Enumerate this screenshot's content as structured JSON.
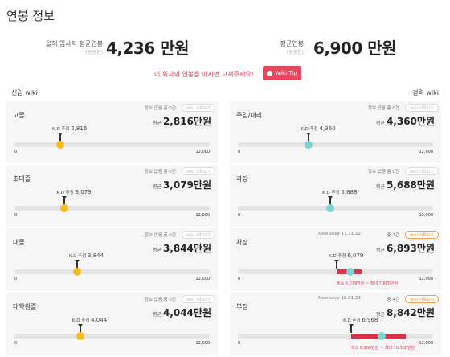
{
  "page_title": "연봉 정보",
  "summary": {
    "left_label": "올해 입사자 평균연봉",
    "left_sub": "(공공현)",
    "left_value": "4,236 만원",
    "right_label": "평균연봉",
    "right_sub": "(공공현)",
    "right_value": "6,900 만원"
  },
  "notice": "이 회사의 연봉을 아시면 고쳐주세요!",
  "wiki_tip_label": "Wiki Tip",
  "columns": {
    "left": "신입 wiki",
    "right": "경력 wiki"
  },
  "colors": {
    "yellow": "#f5bd1f",
    "teal": "#7dd3cf",
    "red": "#d6334a"
  },
  "cards": [
    {
      "category": "고졸",
      "info": "정보 없음",
      "count": "총 0건",
      "wiki_btn": "wiki 기록보기",
      "avg_prefix": "평균",
      "avg": "2,816만원",
      "kd_label": "K.D 추정",
      "kd_value": "2,816",
      "kd": 2816,
      "min": "0",
      "max": "12,000"
    },
    {
      "category": "초대졸",
      "info": "정보 없음",
      "count": "총 0건",
      "wiki_btn": "wiki 기록보기",
      "avg_prefix": "평균",
      "avg": "3,079만원",
      "kd_label": "K.D 추정",
      "kd_value": "3,079",
      "kd": 3079,
      "min": "0",
      "max": "12,000"
    },
    {
      "category": "대졸",
      "info": "정보 없음",
      "count": "총 0건",
      "wiki_btn": "wiki 기록보기",
      "avg_prefix": "평균",
      "avg": "3,844만원",
      "kd_label": "K.D 추정",
      "kd_value": "3,844",
      "kd": 3844,
      "min": "0",
      "max": "12,000"
    },
    {
      "category": "대학원졸",
      "info": "정보 없음",
      "count": "총 0건",
      "wiki_btn": "wiki 기록보기",
      "avg_prefix": "평균",
      "avg": "4,044만원",
      "kd_label": "K.D 추정",
      "kd_value": "4,044",
      "kd": 4044,
      "min": "0",
      "max": "12,000"
    },
    {
      "category": "주임/대리",
      "info": "정보 없음",
      "count": "총 0건",
      "wiki_btn": "wiki 기록보기",
      "avg_prefix": "평균",
      "avg": "4,360만원",
      "kd_label": "K.D 추정",
      "kd_value": "4,360",
      "kd": 4360,
      "min": "0",
      "max": "12,000"
    },
    {
      "category": "과장",
      "info": "정보 없음",
      "count": "총 0건",
      "wiki_btn": "wiki 기록보기",
      "avg_prefix": "평균",
      "avg": "5,688만원",
      "kd_label": "K.D 추정",
      "kd_value": "5,688",
      "kd": 5688,
      "min": "0",
      "max": "12,000"
    },
    {
      "category": "차장",
      "save": "New save 17.11.22",
      "count": "총 2건",
      "wiki_btn": "wiki 기록보기",
      "avg_prefix": "평균",
      "avg": "6,893만원",
      "kd_label": "K.D 추정",
      "kd_value": "6,079",
      "kd": 6079,
      "marker": 6893,
      "band_min": 6079,
      "band_max": 7600,
      "band_label": "최소 6,079만원 ~ 최대 7,600만원",
      "min": "0",
      "max": "12,000"
    },
    {
      "category": "부장",
      "save": "New save 18.01.24",
      "count": "총 4건",
      "wiki_btn": "wiki 기록보기",
      "avg_prefix": "평균",
      "avg": "8,842만원",
      "kd_label": "K.D 추정",
      "kd_value": "6,968",
      "kd": 6968,
      "marker": 8842,
      "band_min": 6968,
      "band_max": 10300,
      "band_label": "최소 6,968만원 ~ 최대 10,300만원",
      "min": "0",
      "max": "12,000"
    }
  ]
}
